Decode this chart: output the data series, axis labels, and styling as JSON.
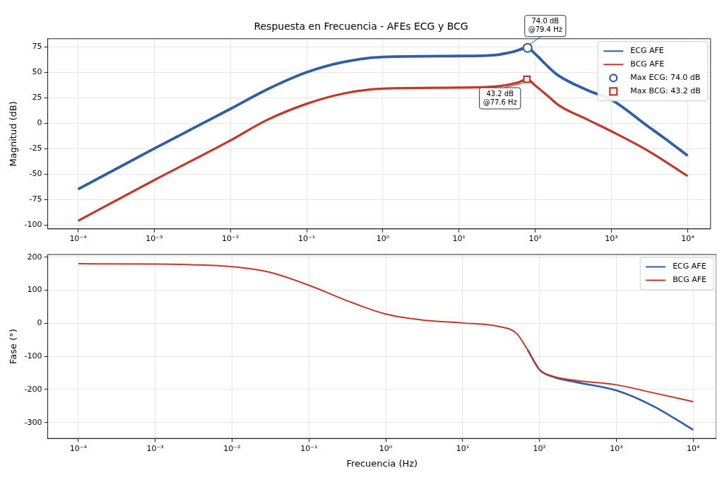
{
  "chart_data": [
    {
      "type": "line",
      "title": "Respuesta en Frecuencia - AFEs ECG y BCG",
      "ylabel": "Magnitud (dB)",
      "log": "x",
      "grid": true,
      "legend": "top right",
      "marker": "none",
      "xlim": [
        4e-05,
        20000.0
      ],
      "xticks": [
        {
          "value": 0.0001,
          "label": "10⁻⁴"
        },
        {
          "value": 0.001,
          "label": "10⁻³"
        },
        {
          "value": 0.01,
          "label": "10⁻²"
        },
        {
          "value": 0.1,
          "label": "10⁻¹"
        },
        {
          "value": 1,
          "label": "10⁰"
        },
        {
          "value": 10,
          "label": "10¹"
        },
        {
          "value": 100,
          "label": "10²"
        },
        {
          "value": 1000,
          "label": "10³"
        },
        {
          "value": 10000,
          "label": "10⁴"
        }
      ],
      "ylim": [
        -104,
        83
      ],
      "yticks": [
        -100,
        -75,
        -50,
        -25,
        0,
        25,
        50,
        75
      ],
      "x": [
        0.0001,
        0.001,
        0.01,
        0.03,
        0.1,
        0.3,
        1,
        10,
        30,
        50,
        79.4,
        100,
        150,
        200,
        500,
        1000,
        3000,
        5000,
        10000
      ],
      "series": [
        {
          "name": "ECG AFE",
          "color": "#2e5ea8",
          "values": [
            -65,
            -25,
            14,
            33,
            50,
            60,
            65,
            66,
            67,
            70,
            74,
            68,
            55,
            47,
            32,
            23,
            -3,
            -15,
            -32
          ]
        },
        {
          "name": "BCG AFE",
          "color": "#c0392b",
          "x": [
            0.0001,
            0.001,
            0.01,
            0.03,
            0.1,
            0.3,
            1,
            10,
            30,
            60,
            77.6,
            100,
            150,
            200,
            500,
            1000,
            3000,
            10000
          ],
          "values": [
            -96,
            -56,
            -17,
            3,
            19,
            29,
            34,
            35,
            36,
            40,
            43.2,
            37,
            26,
            18,
            3,
            -8,
            -27,
            -52
          ]
        },
        {
          "name": "Max ECG: 74.0 dB",
          "type": "scatter",
          "marker": "circle",
          "color": "#2e5ea8",
          "x": [
            79.4
          ],
          "values": [
            74.0
          ]
        },
        {
          "name": "Max BCG: 43.2 dB",
          "type": "scatter",
          "marker": "square",
          "color": "#c0392b",
          "x": [
            77.6
          ],
          "values": [
            43.2
          ]
        }
      ],
      "annotations": [
        {
          "text": "74.0 dB\n@79.4 Hz",
          "x": 79.4,
          "y": 74.0
        },
        {
          "text": "43.2 dB\n@77.6 Hz",
          "x": 77.6,
          "y": 43.2
        }
      ]
    },
    {
      "type": "line",
      "xlabel": "Frecuencia (Hz)",
      "ylabel": "Fase (°)",
      "log": "x",
      "grid": true,
      "legend": "top right",
      "marker": "none",
      "xlim": [
        4e-05,
        20000.0
      ],
      "xticks": [
        {
          "value": 0.0001,
          "label": "10⁻⁴"
        },
        {
          "value": 0.001,
          "label": "10⁻³"
        },
        {
          "value": 0.01,
          "label": "10⁻²"
        },
        {
          "value": 0.1,
          "label": "10⁻¹"
        },
        {
          "value": 1,
          "label": "10⁰"
        },
        {
          "value": 10,
          "label": "10¹"
        },
        {
          "value": 100,
          "label": "10²"
        },
        {
          "value": 1000,
          "label": "10³"
        },
        {
          "value": 10000,
          "label": "10⁴"
        }
      ],
      "ylim": [
        -348,
        208
      ],
      "yticks": [
        -300,
        -200,
        -100,
        0,
        100,
        200
      ],
      "x": [
        0.0001,
        0.001,
        0.003,
        0.01,
        0.03,
        0.1,
        0.3,
        1,
        3,
        10,
        30,
        50,
        70,
        100,
        150,
        300,
        1000,
        3000,
        10000
      ],
      "series": [
        {
          "name": "ECG AFE",
          "color": "#2e5ea8",
          "values": [
            null,
            null,
            null,
            null,
            null,
            null,
            null,
            null,
            null,
            null,
            null,
            null,
            -80,
            -140,
            -162,
            -178,
            -203,
            -250,
            -322
          ]
        },
        {
          "name": "BCG AFE",
          "color": "#c0392b",
          "values": [
            180,
            179,
            177,
            171,
            155,
            115,
            70,
            28,
            10,
            1,
            -10,
            -30,
            -80,
            -140,
            -160,
            -173,
            -186,
            -210,
            -237
          ]
        }
      ]
    }
  ]
}
